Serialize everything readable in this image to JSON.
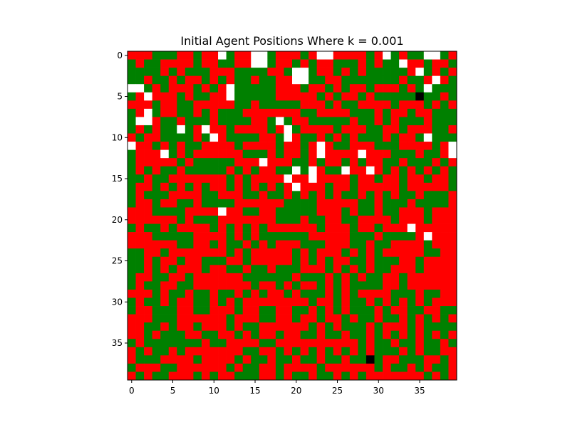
{
  "chart_data": {
    "type": "heatmap",
    "title": "Initial Agent Positions Where k = 0.001",
    "xlabel": "",
    "ylabel": "",
    "rows": 40,
    "cols": 40,
    "xlim": [
      -0.5,
      39.5
    ],
    "ylim": [
      39.5,
      -0.5
    ],
    "x_ticks": [
      0,
      5,
      10,
      15,
      20,
      25,
      30,
      35
    ],
    "y_ticks": [
      0,
      5,
      10,
      15,
      20,
      25,
      30,
      35
    ],
    "grid": false,
    "legend": "none",
    "value_legend": {
      "0": "empty",
      "1": "green agent",
      "2": "red agent",
      "3": "marked cell"
    },
    "colors": {
      "0": "#ffffff",
      "1": "#008000",
      "2": "#ff0000",
      "3": "#000000"
    },
    "grid_values": [
      "2221112212201220012221200222212012110012",
      "1211222212211220012212122111212110221221",
      "1111212111222111122100122121211111201212",
      "1121121221212112112200112211111112112021",
      "0012122212120111112221221212212221210111",
      "1202221211220111112222212122121111131121",
      "2221221122222112111112221211222212221212",
      "1201221121211122222221122221112122122111",
      "1002112111211112210122111112112121112111",
      "1212110120221222212012222122211221222112",
      "2122111121021111221021121212111212210111",
      "0221212112222122221221202112221112222120",
      "1222012122222211121221202222022211121120",
      "1222221211111222022211212212122112111212",
      "1212112111112121221101021102202121212121",
      "1121122222221212222022022221221221221221",
      "1221212121221212121202221221222221222221",
      "1211122221122211211212121211212121121112",
      "1221221121111222222111122222112111211112",
      "2221111222202211221111122212112112221222",
      "2222221211122222221112112211222212221222",
      "1211212222121212122222212221221222022222",
      "2221111122221212111111222221112111120222",
      "2222221122121121212221112221121122221222",
      "1122122222221212222212122212121222221122",
      "1121221221112212222212121221121112212222",
      "1121212221221121121112221212121122212222",
      "1221122122222211111121112121211221222222",
      "1211221122222221221212212121111221222222",
      "2221211211211212122121112121222211121122",
      "1211212211212122222222122121121212121222",
      "1221112211222122112211212121112122112211",
      "2221112222221222112212212212112112121212",
      "2211212212221211222222121211121222121111",
      "2212111221122121221221121121121212121212",
      "1211111112112222112222222222121121121121",
      "2121121222222211221212121212121112121122",
      "2111222212222121121121121121131221112212",
      "1222112222221211221222212222221211212112",
      "2121122212122111221211211212122222221212"
    ]
  }
}
